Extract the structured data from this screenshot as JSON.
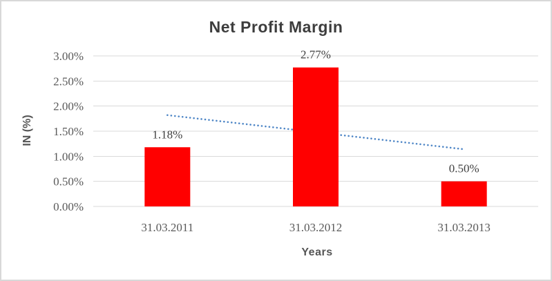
{
  "chart_data": {
    "type": "bar",
    "title": "Net Profit Margin",
    "xlabel": "Years",
    "ylabel": "IN (%)",
    "categories": [
      "31.03.2011",
      "31.03.2012",
      "31.03.2013"
    ],
    "values": [
      1.18,
      2.77,
      0.5
    ],
    "data_labels": [
      "1.18%",
      "2.77%",
      "0.50%"
    ],
    "y_ticks": [
      {
        "label": "3.00%",
        "value": 3.0
      },
      {
        "label": "2.50%",
        "value": 2.5
      },
      {
        "label": "2.00%",
        "value": 2.0
      },
      {
        "label": "1.50%",
        "value": 1.5
      },
      {
        "label": "1.00%",
        "value": 1.0
      },
      {
        "label": "0.50%",
        "value": 0.5
      },
      {
        "label": "0.00%",
        "value": 0.0
      }
    ],
    "ylim": [
      0,
      3.0
    ],
    "grid": true,
    "legend": "none",
    "bar_color": "#ff0000",
    "trendline": {
      "type": "linear",
      "style": "dotted",
      "color": "#4e86c6",
      "start_value": 1.82,
      "end_value": 1.14
    },
    "colors": {
      "title": "#3d3d3d",
      "axis_title": "#555555",
      "tick_label": "#595959",
      "category_label": "#595959",
      "data_label": "#3f3f3f",
      "gridline": "#d9d9d9",
      "frame_border": "#d8d8d8",
      "background": "#ffffff"
    }
  }
}
